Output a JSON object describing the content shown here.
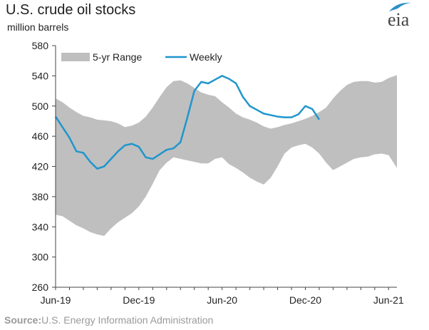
{
  "header": {
    "title": "U.S. crude oil stocks",
    "subtitle": "million  barrels"
  },
  "logo": {
    "text": "eia",
    "accent_color": "#2a8fc8"
  },
  "source": {
    "label": "Source:",
    "text": "U.S. Energy Information Administration"
  },
  "colors": {
    "range_fill": "#bfbfbf",
    "weekly_line": "#1f96cd",
    "axis": "#444444"
  },
  "chart_data": {
    "type": "area",
    "title": "U.S. crude oil stocks",
    "ylabel": "million  barrels",
    "ylim": [
      260,
      580
    ],
    "yticks": [
      260,
      300,
      340,
      380,
      420,
      460,
      500,
      540,
      580
    ],
    "x_tick_labels": [
      "Jun-19",
      "Dec-19",
      "Jun-20",
      "Dec-20",
      "Jun-21"
    ],
    "x_tick_positions": [
      0,
      6,
      12,
      18,
      24
    ],
    "xlim": [
      0,
      24.6
    ],
    "grid": false,
    "legend": {
      "placement": "top",
      "entries": [
        "5-yr Range",
        "Weekly"
      ]
    },
    "series": [
      {
        "name": "5-yr Range",
        "kind": "band",
        "x": [
          0,
          0.5,
          1,
          1.5,
          2,
          2.5,
          3,
          3.5,
          4,
          4.5,
          5,
          5.5,
          6,
          6.5,
          7,
          7.5,
          8,
          8.5,
          9,
          9.5,
          10,
          10.5,
          11,
          11.5,
          12,
          12.5,
          13,
          13.5,
          14,
          14.5,
          15,
          15.5,
          16,
          16.5,
          17,
          17.5,
          18,
          18.5,
          19,
          19.5,
          20,
          20.5,
          21,
          21.5,
          22,
          22.5,
          23,
          23.5,
          24,
          24.6
        ],
        "high": [
          510,
          505,
          498,
          492,
          487,
          485,
          482,
          481,
          480,
          477,
          472,
          474,
          478,
          486,
          498,
          512,
          525,
          533,
          534,
          530,
          524,
          518,
          515,
          513,
          505,
          498,
          490,
          485,
          482,
          478,
          473,
          470,
          472,
          475,
          477,
          480,
          483,
          487,
          492,
          498,
          510,
          520,
          528,
          532,
          533,
          533,
          531,
          532,
          537,
          541
        ],
        "low": [
          356,
          354,
          348,
          342,
          338,
          333,
          330,
          328,
          338,
          346,
          352,
          358,
          367,
          380,
          397,
          415,
          425,
          432,
          430,
          428,
          426,
          424,
          424,
          430,
          432,
          423,
          418,
          412,
          405,
          400,
          396,
          405,
          420,
          437,
          445,
          448,
          450,
          445,
          437,
          425,
          415,
          420,
          425,
          430,
          432,
          433,
          436,
          437,
          435,
          418
        ]
      },
      {
        "name": "Weekly",
        "kind": "line",
        "x": [
          0,
          0.5,
          1,
          1.5,
          2,
          2.5,
          3,
          3.5,
          4,
          4.5,
          5,
          5.5,
          6,
          6.5,
          7,
          7.5,
          8,
          8.5,
          9,
          9.5,
          10,
          10.5,
          11,
          11.5,
          12,
          12.5,
          13,
          13.5,
          14,
          14.5,
          15,
          15.5,
          16,
          16.5,
          17,
          17.5,
          18,
          18.5,
          19
        ],
        "values": [
          486,
          472,
          458,
          440,
          438,
          426,
          417,
          420,
          430,
          440,
          448,
          450,
          446,
          432,
          430,
          436,
          442,
          444,
          452,
          485,
          520,
          532,
          530,
          535,
          540,
          536,
          530,
          512,
          500,
          495,
          490,
          488,
          486,
          485,
          485,
          489,
          500,
          496,
          482
        ]
      }
    ]
  }
}
